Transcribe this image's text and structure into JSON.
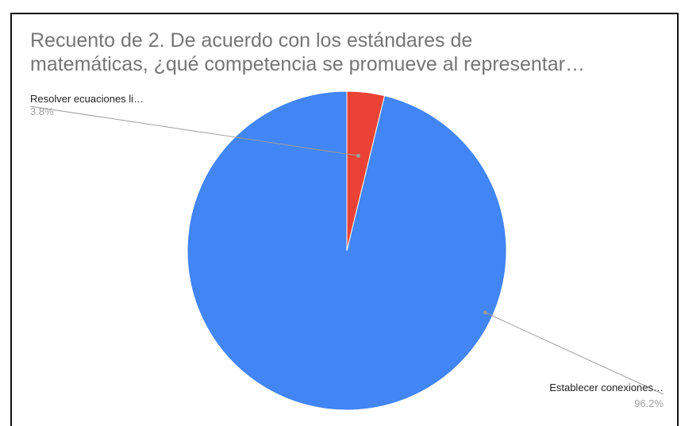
{
  "chart_data": {
    "type": "pie",
    "title_lines": [
      "Recuento de 2. De acuerdo con los estándares de",
      "matemáticas, ¿qué competencia se promueve al representar…"
    ],
    "slices": [
      {
        "label": "Resolver ecuaciones li…",
        "value": 3.8,
        "percent_label": "3.8%",
        "color": "#ea4335"
      },
      {
        "label": "Establecer conexiones…",
        "value": 96.2,
        "percent_label": "96.2%",
        "color": "#4285f4"
      }
    ],
    "legend": "none",
    "start_angle": "12 o'clock",
    "direction": "clockwise"
  }
}
